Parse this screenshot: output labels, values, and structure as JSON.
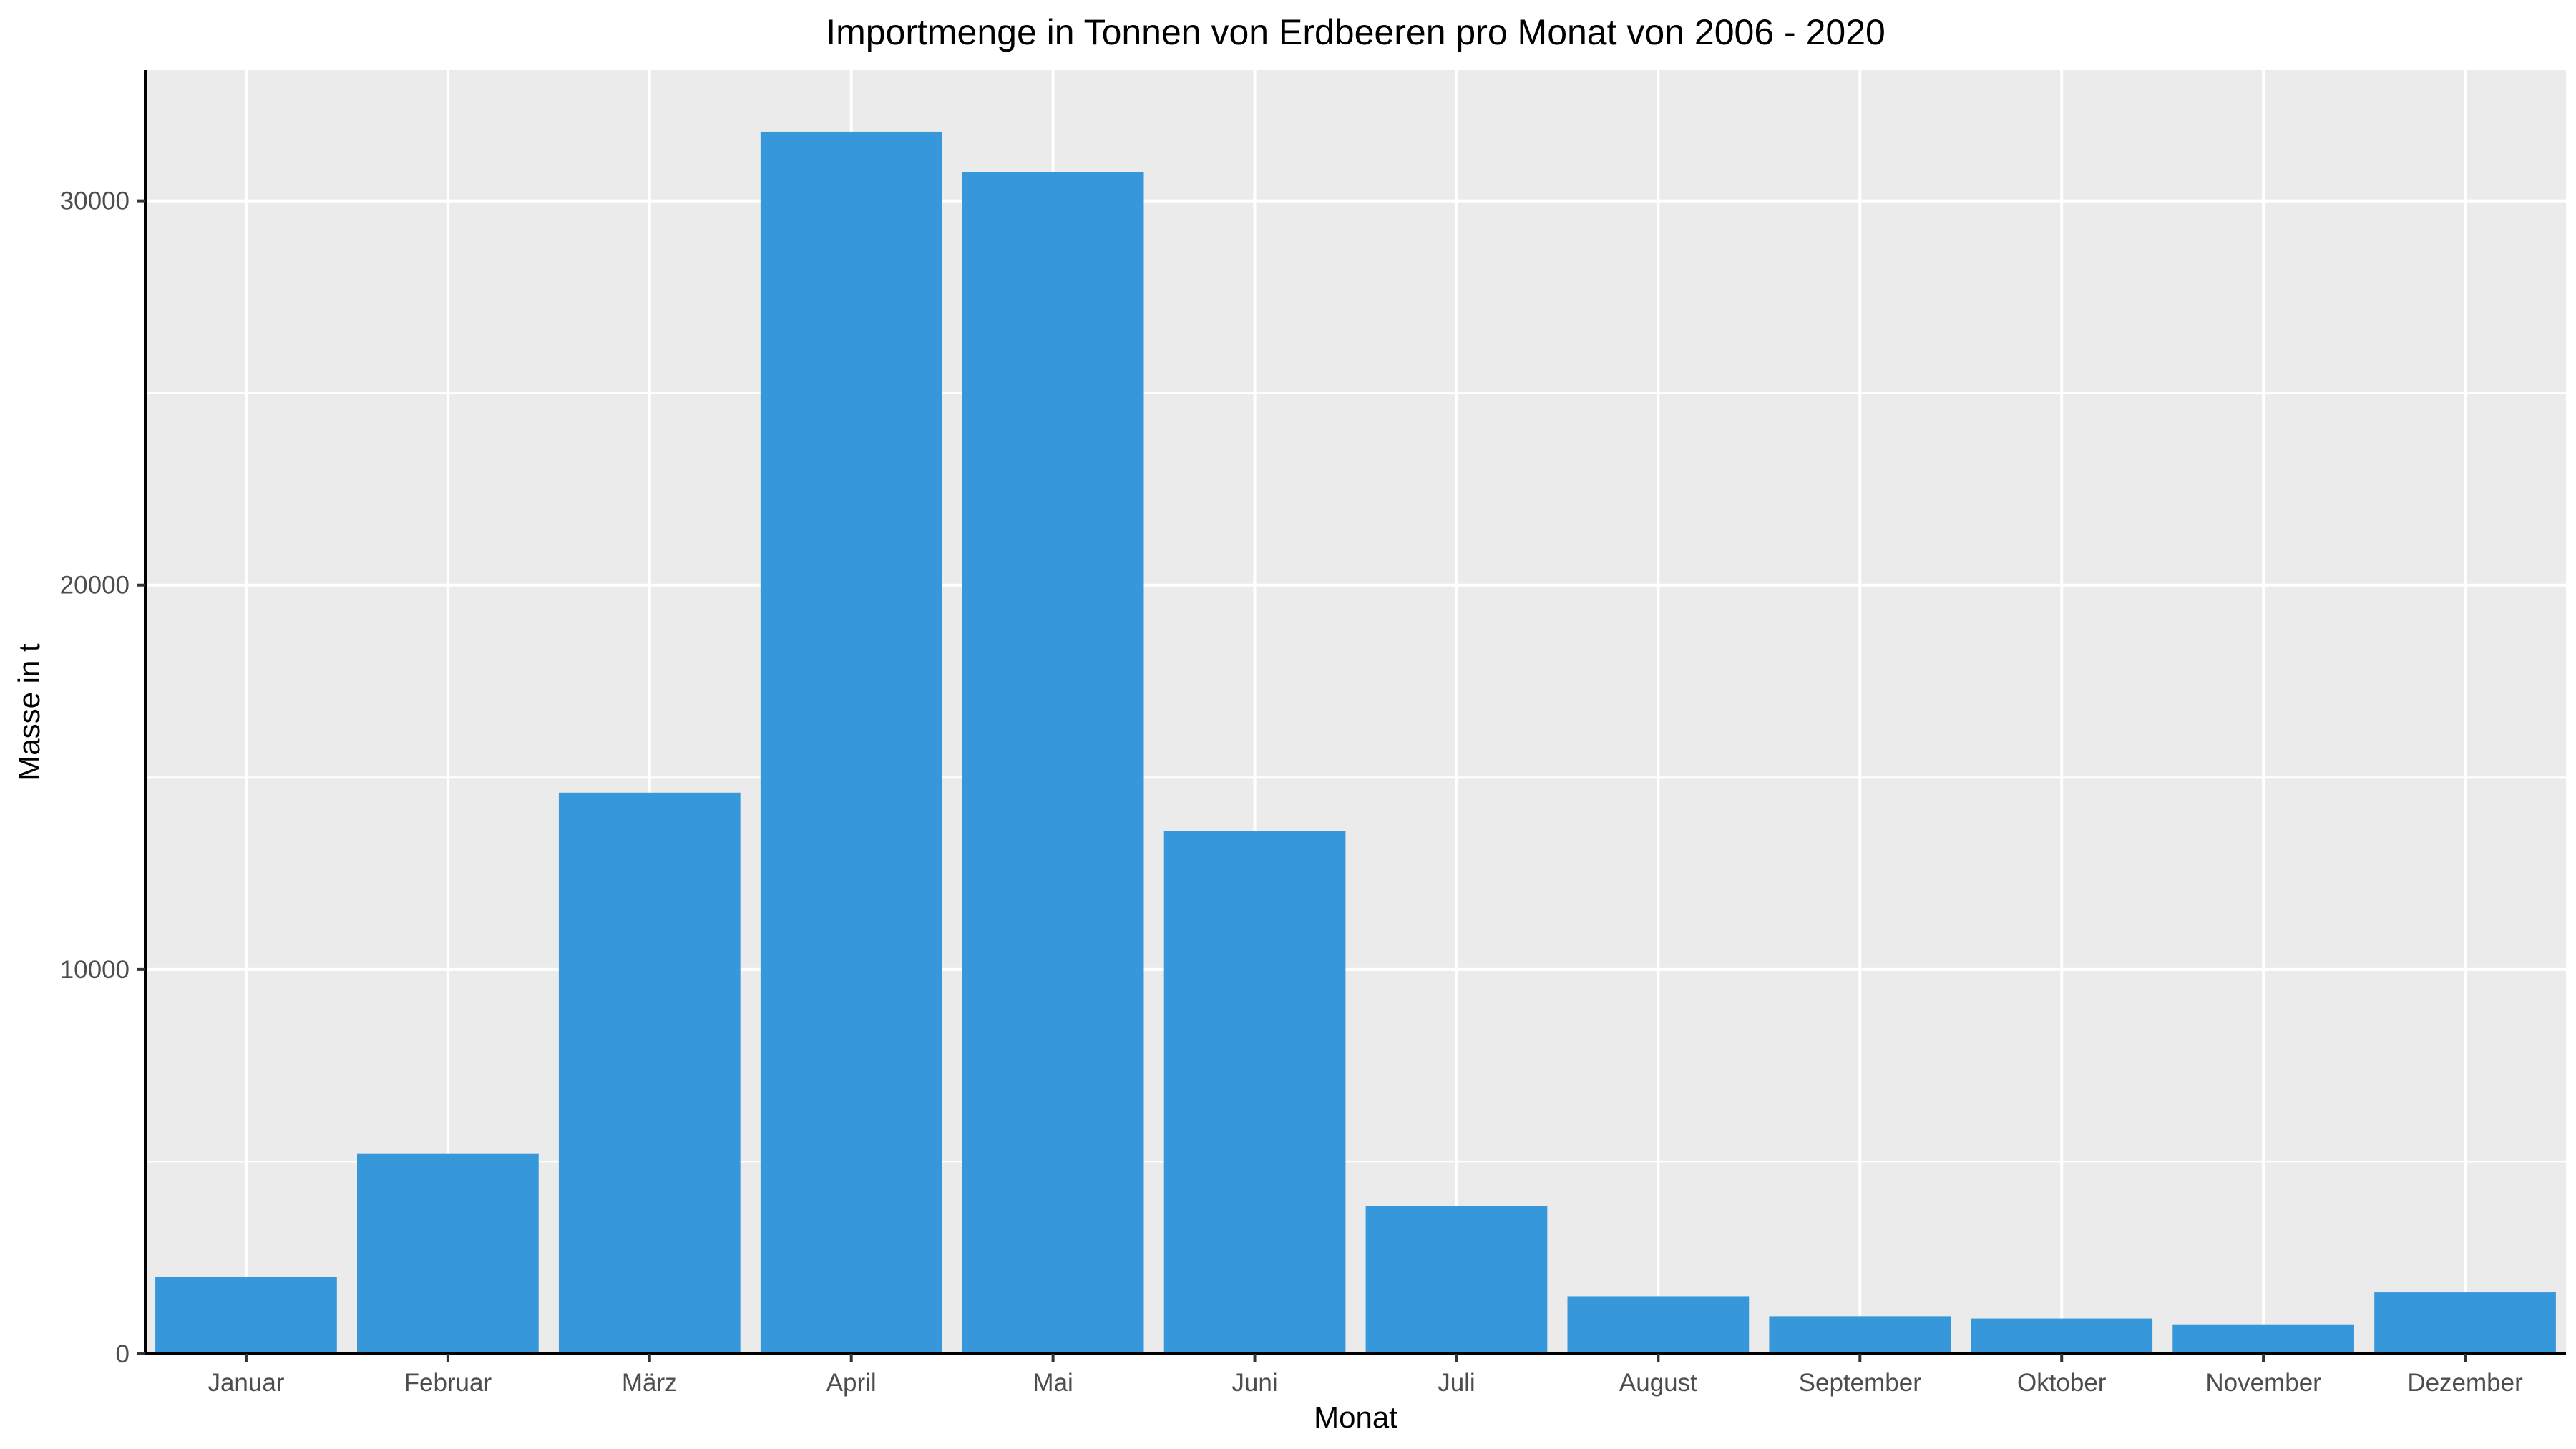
{
  "chart_data": {
    "type": "bar",
    "title": "Importmenge in Tonnen von Erdbeeren pro Monat von 2006 - 2020",
    "xlabel": "Monat",
    "ylabel": "Masse in t",
    "categories": [
      "Januar",
      "Februar",
      "März",
      "April",
      "Mai",
      "Juni",
      "Juli",
      "August",
      "September",
      "Oktober",
      "November",
      "Dezember"
    ],
    "values": [
      2000,
      5200,
      14600,
      31800,
      30750,
      13600,
      3850,
      1500,
      980,
      920,
      750,
      1600
    ],
    "ylim": [
      0,
      33400
    ],
    "yticks": [
      0,
      10000,
      20000,
      30000
    ],
    "ytick_labels": [
      "0",
      "10000",
      "20000",
      "30000"
    ],
    "grid": true,
    "legend": "none",
    "colors": {
      "bar": "#3797db",
      "panel_background": "#ebebeb",
      "grid_line": "#ffffff",
      "axis_line": "#000000"
    }
  }
}
